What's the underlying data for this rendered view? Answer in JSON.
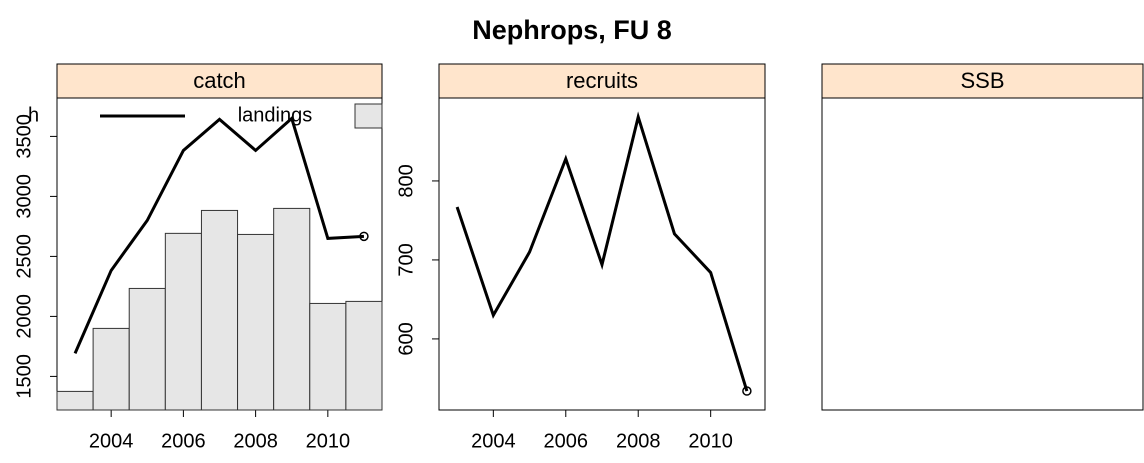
{
  "title": "Nephrops, FU 8",
  "chart_data": [
    {
      "type": "bar_line",
      "title": "catch",
      "x": [
        2003,
        2004,
        2005,
        2006,
        2007,
        2008,
        2009,
        2010,
        2011
      ],
      "xlim": [
        2002.5,
        2011.5
      ],
      "xticks": [
        2004,
        2006,
        2008,
        2010
      ],
      "ylim": [
        1220,
        3820
      ],
      "yticks": [
        1500,
        2000,
        2500,
        3000,
        3500
      ],
      "series": [
        {
          "name": "h",
          "mark": "line",
          "color": "#000000",
          "values": [
            1692,
            2383,
            2800,
            3383,
            3642,
            3383,
            3650,
            2650,
            2667
          ]
        },
        {
          "name": "landings",
          "mark": "bar",
          "color": "#e6e6e6",
          "values": [
            1375,
            1900,
            2233,
            2692,
            2883,
            2683,
            2900,
            2108,
            2125
          ]
        }
      ]
    },
    {
      "type": "line",
      "title": "recruits",
      "x": [
        2003,
        2004,
        2005,
        2006,
        2007,
        2008,
        2009,
        2010,
        2011
      ],
      "xlim": [
        2002.5,
        2011.5
      ],
      "xticks": [
        2004,
        2006,
        2008,
        2010
      ],
      "ylim": [
        510,
        905
      ],
      "yticks": [
        600,
        700,
        800
      ],
      "color": "#000000",
      "values": [
        767,
        630,
        710,
        828,
        694,
        881,
        733,
        684,
        534
      ]
    },
    {
      "type": "empty",
      "title": "SSB"
    }
  ]
}
